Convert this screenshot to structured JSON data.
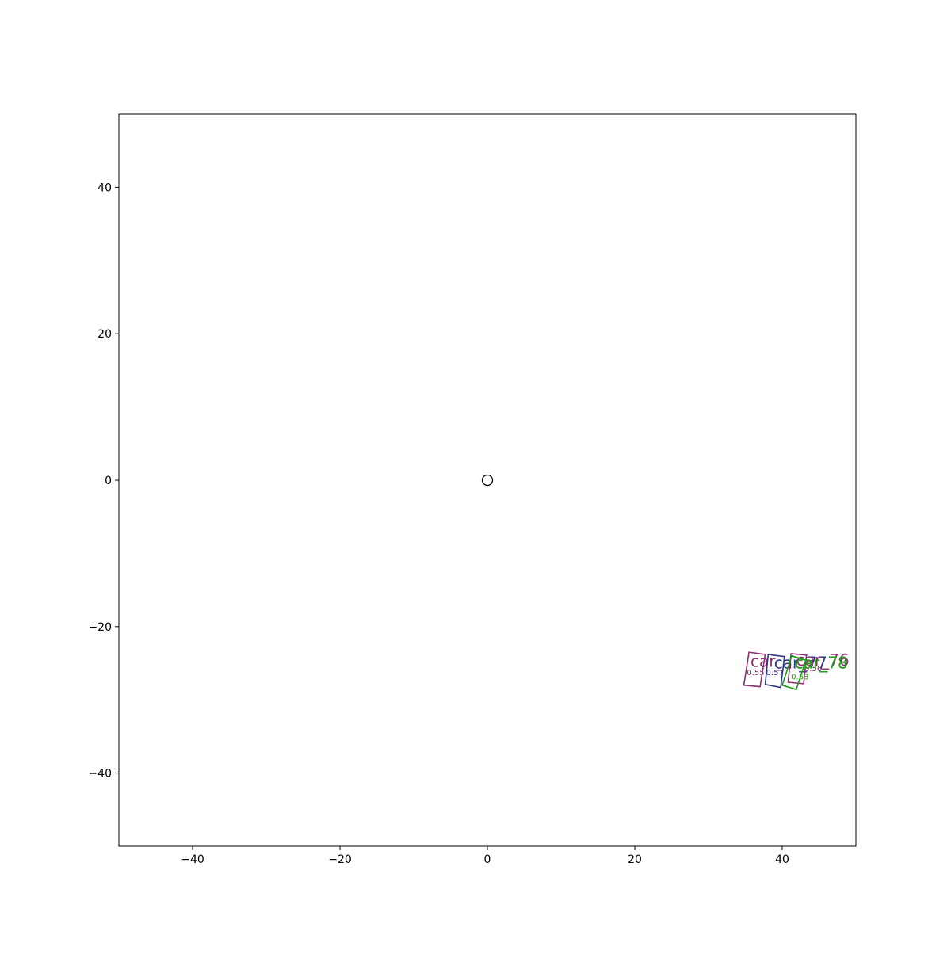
{
  "chart_data": {
    "type": "scatter",
    "title": "",
    "xlabel": "",
    "ylabel": "",
    "xlim": [
      -50,
      50
    ],
    "ylim": [
      -50,
      50
    ],
    "xticks": [
      -40,
      -20,
      0,
      20,
      40
    ],
    "yticks": [
      -40,
      -20,
      0,
      20,
      40
    ],
    "xtick_labels": [
      "−40",
      "−20",
      "0",
      "20",
      "40"
    ],
    "ytick_labels": [
      "−40",
      "−20",
      "0",
      "20",
      "40"
    ],
    "grid": false,
    "ego_marker": {
      "x": 0,
      "y": 0,
      "shape": "circle"
    },
    "detections": [
      {
        "label": "car_",
        "score": "0.55",
        "color": "#8b2f6e",
        "corners": [
          [
            34.8,
            -28.0
          ],
          [
            37.0,
            -28.2
          ],
          [
            37.7,
            -23.8
          ],
          [
            35.5,
            -23.5
          ]
        ],
        "label_pos": [
          35.7,
          -25.5
        ],
        "score_pos": [
          36.4,
          -26.6
        ]
      },
      {
        "label": "car_77",
        "score": "0.57",
        "color": "#2e3a87",
        "corners": [
          [
            37.7,
            -27.9
          ],
          [
            39.8,
            -28.3
          ],
          [
            40.3,
            -24.1
          ],
          [
            38.1,
            -23.8
          ]
        ],
        "label_pos": [
          38.9,
          -25.7
        ],
        "score_pos": [
          39.0,
          -26.6
        ]
      },
      {
        "label": "car_76",
        "score": "0.56",
        "color": "#8b2f6e",
        "corners": [
          [
            40.8,
            -27.6
          ],
          [
            42.9,
            -27.8
          ],
          [
            43.3,
            -23.9
          ],
          [
            41.2,
            -23.7
          ]
        ],
        "label_pos": [
          41.9,
          -25.3
        ],
        "score_pos": [
          44.2,
          -26.1
        ]
      },
      {
        "label": "car_78",
        "score": "0.53",
        "color": "#1f9a14",
        "corners": [
          [
            40.0,
            -28.0
          ],
          [
            41.9,
            -28.6
          ],
          [
            43.2,
            -24.6
          ],
          [
            41.3,
            -24.0
          ]
        ],
        "label_pos": [
          41.7,
          -25.7
        ],
        "score_pos": [
          42.4,
          -27.2
        ]
      }
    ]
  },
  "colors": {
    "axes": "#000000",
    "background": "#ffffff",
    "magenta_series": "#8b2f6e",
    "blue_series": "#2e3a87",
    "green_series": "#1f9a14"
  }
}
